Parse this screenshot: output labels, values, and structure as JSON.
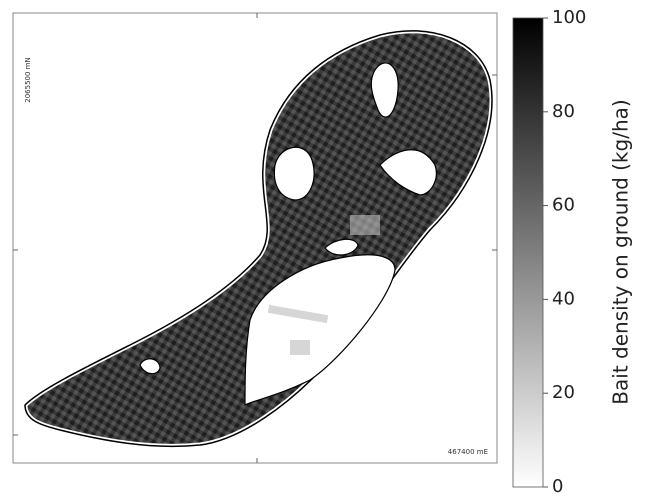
{
  "map": {
    "northing_label": "2065500 mN",
    "easting_label": "467400 mE"
  },
  "colorbar": {
    "label": "Bait density on ground (kg/ha)",
    "range": [
      0,
      100
    ],
    "ticks": [
      0,
      20,
      40,
      60,
      80,
      100
    ]
  }
}
